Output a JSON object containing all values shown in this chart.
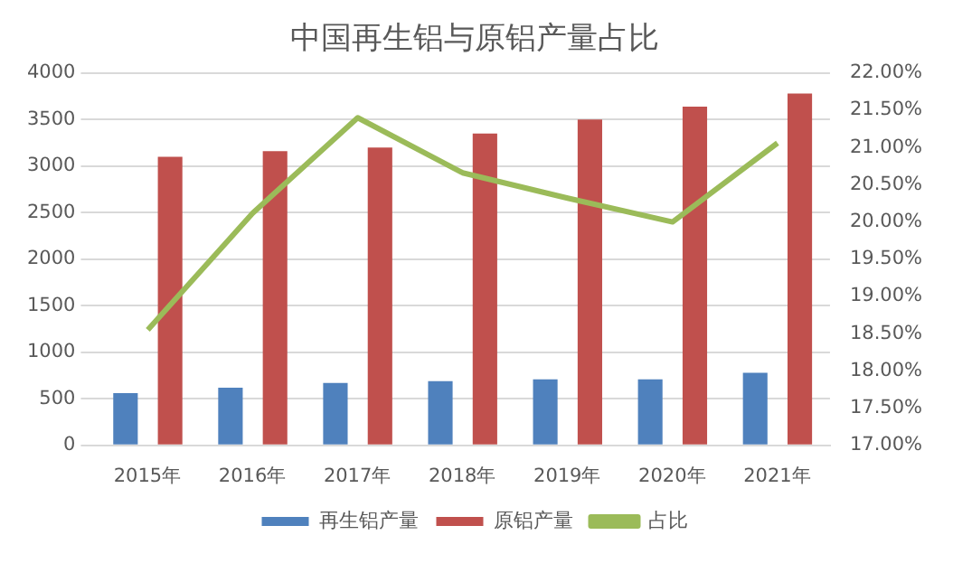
{
  "chart_data": {
    "type": "bar",
    "title": "中国再生铝与原铝产量占比",
    "categories": [
      "2015年",
      "2016年",
      "2017年",
      "2018年",
      "2019年",
      "2020年",
      "2021年"
    ],
    "series": [
      {
        "name": "再生铝产量",
        "color": "#4f81bd",
        "values": [
          560,
          620,
          670,
          690,
          710,
          710,
          780
        ]
      },
      {
        "name": "原铝产量",
        "color": "#c0504d",
        "values": [
          3100,
          3160,
          3200,
          3350,
          3500,
          3640,
          3780
        ]
      },
      {
        "name": "占比",
        "type": "line",
        "axis": "y2",
        "color": "#9bbb59",
        "values": [
          18.55,
          20.12,
          21.4,
          20.66,
          20.32,
          20.0,
          21.06
        ]
      }
    ],
    "ylim": [
      0,
      4000
    ],
    "yticks": [
      0,
      500,
      1000,
      1500,
      2000,
      2500,
      3000,
      3500,
      4000
    ],
    "y2lim": [
      17,
      22
    ],
    "y2ticks": [
      {
        "value": 17,
        "label": "17.00%"
      },
      {
        "value": 17.5,
        "label": "17.50%"
      },
      {
        "value": 18,
        "label": "18.00%"
      },
      {
        "value": 18.5,
        "label": "18.50%"
      },
      {
        "value": 19,
        "label": "19.00%"
      },
      {
        "value": 19.5,
        "label": "19.50%"
      },
      {
        "value": 20,
        "label": "20.00%"
      },
      {
        "value": 20.5,
        "label": "20.50%"
      },
      {
        "value": 21,
        "label": "21.00%"
      },
      {
        "value": 21.5,
        "label": "21.50%"
      },
      {
        "value": 22,
        "label": "22.00%"
      }
    ],
    "grid": "y",
    "legend": "bottom",
    "marker": "none"
  }
}
